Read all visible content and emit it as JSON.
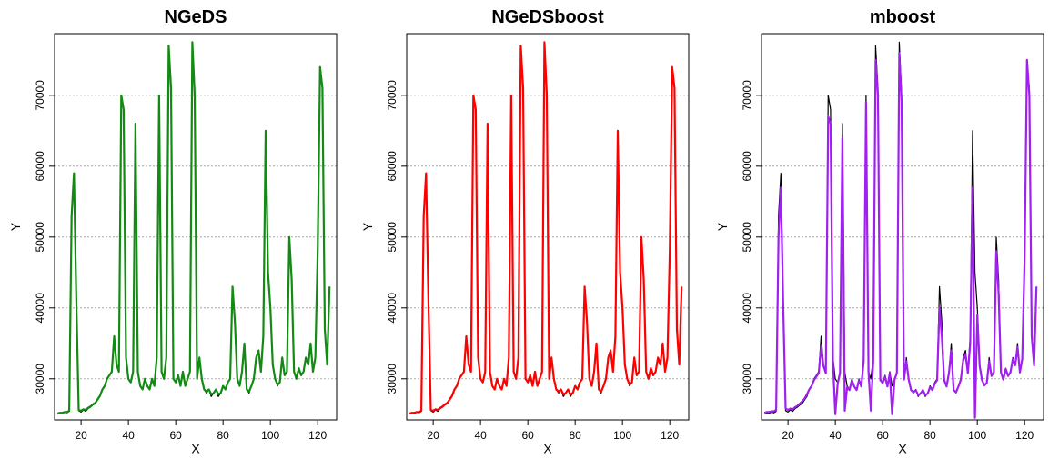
{
  "chart_data": [
    {
      "type": "line",
      "title": "NGeDS",
      "x_label": "X",
      "y_label": "Y",
      "x": [
        10,
        11,
        12,
        13,
        14,
        15,
        16,
        17,
        18,
        19,
        20,
        21,
        22,
        23,
        24,
        25,
        26,
        27,
        28,
        29,
        30,
        31,
        32,
        33,
        34,
        35,
        36,
        37,
        38,
        39,
        40,
        41,
        42,
        43,
        44,
        45,
        46,
        47,
        48,
        49,
        50,
        51,
        52,
        53,
        54,
        55,
        56,
        57,
        58,
        59,
        60,
        61,
        62,
        63,
        64,
        65,
        66,
        67,
        68,
        69,
        70,
        71,
        72,
        73,
        74,
        75,
        76,
        77,
        78,
        79,
        80,
        81,
        82,
        83,
        84,
        85,
        86,
        87,
        88,
        89,
        90,
        91,
        92,
        93,
        94,
        95,
        96,
        97,
        98,
        99,
        100,
        101,
        102,
        103,
        104,
        105,
        106,
        107,
        108,
        109,
        110,
        111,
        112,
        113,
        114,
        115,
        116,
        117,
        118,
        119,
        120,
        121,
        122,
        123,
        124,
        125
      ],
      "series": [
        {
          "color": "#000000",
          "values": [
            25000,
            25200,
            25100,
            25300,
            25200,
            25400,
            53000,
            59000,
            41000,
            25500,
            25300,
            25600,
            25400,
            25800,
            26000,
            26300,
            26500,
            27000,
            27500,
            28500,
            29000,
            30000,
            30500,
            31000,
            36000,
            32000,
            31000,
            70000,
            68000,
            33000,
            30000,
            29500,
            31000,
            66000,
            31000,
            29000,
            28500,
            30000,
            29000,
            28500,
            30000,
            29000,
            33000,
            70000,
            31000,
            30000,
            33000,
            77000,
            71000,
            30000,
            29500,
            30500,
            29000,
            31000,
            29000,
            30000,
            31000,
            77500,
            70000,
            30000,
            33000,
            30000,
            28500,
            28000,
            28500,
            27500,
            28000,
            28500,
            27500,
            28000,
            29000,
            28500,
            29500,
            30000,
            43000,
            38000,
            30000,
            29000,
            31000,
            35000,
            28500,
            28000,
            29000,
            30000,
            33000,
            34000,
            31000,
            36000,
            65000,
            45000,
            40000,
            32000,
            30000,
            29000,
            29500,
            33000,
            30500,
            31000,
            50000,
            44000,
            31000,
            30000,
            31500,
            30500,
            31000,
            33000,
            32000,
            35000,
            31000,
            33000,
            48000,
            74000,
            71000,
            37000,
            32000,
            43000
          ]
        },
        {
          "color": "#138a13",
          "values": [
            25100,
            25200,
            25200,
            25300,
            25300,
            25500,
            53000,
            59000,
            41000,
            25600,
            25500,
            25700,
            25600,
            25900,
            26100,
            26400,
            26600,
            27100,
            27600,
            28500,
            29000,
            30000,
            30500,
            31000,
            36000,
            32000,
            31000,
            70000,
            68000,
            33000,
            30000,
            29500,
            31000,
            66000,
            31000,
            29000,
            28500,
            30000,
            29000,
            28500,
            30000,
            29000,
            33000,
            70000,
            31000,
            30000,
            33000,
            77000,
            71000,
            30000,
            29500,
            30500,
            29000,
            31000,
            29000,
            30000,
            31000,
            77500,
            70000,
            30000,
            33000,
            30000,
            28500,
            28200,
            28500,
            27800,
            28000,
            28500,
            27800,
            28000,
            29000,
            28500,
            29500,
            30000,
            43000,
            38000,
            30000,
            29000,
            31000,
            35000,
            28500,
            28200,
            29000,
            30000,
            33000,
            34000,
            31000,
            36000,
            65000,
            45000,
            40000,
            32000,
            30000,
            29200,
            29500,
            33000,
            30500,
            31000,
            50000,
            44000,
            31000,
            30000,
            31500,
            30500,
            31000,
            33000,
            32000,
            35000,
            31000,
            33000,
            48000,
            74000,
            71000,
            37000,
            32000,
            43000
          ]
        }
      ],
      "xlim": [
        8.8,
        128
      ],
      "ylim": [
        24200,
        78700
      ],
      "xticks": [
        20,
        40,
        60,
        80,
        100,
        120
      ],
      "yticks": [
        30000,
        40000,
        50000,
        60000,
        70000
      ],
      "grid": true
    },
    {
      "type": "line",
      "title": "NGeDSboost",
      "x_label": "X",
      "y_label": "Y",
      "x": [
        10,
        11,
        12,
        13,
        14,
        15,
        16,
        17,
        18,
        19,
        20,
        21,
        22,
        23,
        24,
        25,
        26,
        27,
        28,
        29,
        30,
        31,
        32,
        33,
        34,
        35,
        36,
        37,
        38,
        39,
        40,
        41,
        42,
        43,
        44,
        45,
        46,
        47,
        48,
        49,
        50,
        51,
        52,
        53,
        54,
        55,
        56,
        57,
        58,
        59,
        60,
        61,
        62,
        63,
        64,
        65,
        66,
        67,
        68,
        69,
        70,
        71,
        72,
        73,
        74,
        75,
        76,
        77,
        78,
        79,
        80,
        81,
        82,
        83,
        84,
        85,
        86,
        87,
        88,
        89,
        90,
        91,
        92,
        93,
        94,
        95,
        96,
        97,
        98,
        99,
        100,
        101,
        102,
        103,
        104,
        105,
        106,
        107,
        108,
        109,
        110,
        111,
        112,
        113,
        114,
        115,
        116,
        117,
        118,
        119,
        120,
        121,
        122,
        123,
        124,
        125
      ],
      "series": [
        {
          "color": "#000000",
          "values": [
            25000,
            25200,
            25100,
            25300,
            25200,
            25400,
            53000,
            59000,
            41000,
            25500,
            25300,
            25600,
            25400,
            25800,
            26000,
            26300,
            26500,
            27000,
            27500,
            28500,
            29000,
            30000,
            30500,
            31000,
            36000,
            32000,
            31000,
            70000,
            68000,
            33000,
            30000,
            29500,
            31000,
            66000,
            31000,
            29000,
            28500,
            30000,
            29000,
            28500,
            30000,
            29000,
            33000,
            70000,
            31000,
            30000,
            33000,
            77000,
            71000,
            30000,
            29500,
            30500,
            29000,
            31000,
            29000,
            30000,
            31000,
            77500,
            70000,
            30000,
            33000,
            30000,
            28500,
            28000,
            28500,
            27500,
            28000,
            28500,
            27500,
            28000,
            29000,
            28500,
            29500,
            30000,
            43000,
            38000,
            30000,
            29000,
            31000,
            35000,
            28500,
            28000,
            29000,
            30000,
            33000,
            34000,
            31000,
            36000,
            65000,
            45000,
            40000,
            32000,
            30000,
            29000,
            29500,
            33000,
            30500,
            31000,
            50000,
            44000,
            31000,
            30000,
            31500,
            30500,
            31000,
            33000,
            32000,
            35000,
            31000,
            33000,
            48000,
            74000,
            71000,
            37000,
            32000,
            43000
          ]
        },
        {
          "color": "#ff0000",
          "values": [
            25100,
            25200,
            25200,
            25300,
            25300,
            25500,
            53000,
            59000,
            41000,
            25600,
            25500,
            25700,
            25600,
            25900,
            26100,
            26400,
            26600,
            27100,
            27600,
            28500,
            29000,
            30000,
            30500,
            31000,
            36000,
            32000,
            31000,
            70000,
            68000,
            33000,
            30000,
            29500,
            31000,
            66000,
            31000,
            29000,
            28500,
            30000,
            29000,
            28500,
            30000,
            29000,
            33000,
            70000,
            31000,
            30000,
            33000,
            77000,
            71000,
            30000,
            29500,
            30500,
            29000,
            31000,
            29000,
            30000,
            31000,
            77500,
            70000,
            30000,
            33000,
            30000,
            28500,
            28200,
            28500,
            27800,
            28000,
            28500,
            27800,
            28000,
            29000,
            28500,
            29500,
            30000,
            43000,
            38000,
            30000,
            29000,
            31000,
            35000,
            28500,
            28200,
            29000,
            30000,
            33000,
            34000,
            31000,
            36000,
            65000,
            45000,
            40000,
            32000,
            30000,
            29200,
            29500,
            33000,
            30500,
            31000,
            50000,
            44000,
            31000,
            30000,
            31500,
            30500,
            31000,
            33000,
            32000,
            35000,
            31000,
            33000,
            48000,
            74000,
            71000,
            37000,
            32000,
            43000
          ]
        }
      ],
      "xlim": [
        8.8,
        128
      ],
      "ylim": [
        24200,
        78700
      ],
      "xticks": [
        20,
        40,
        60,
        80,
        100,
        120
      ],
      "yticks": [
        30000,
        40000,
        50000,
        60000,
        70000
      ],
      "grid": true
    },
    {
      "type": "line",
      "title": "mboost",
      "x_label": "X",
      "y_label": "Y",
      "x": [
        10,
        11,
        12,
        13,
        14,
        15,
        16,
        17,
        18,
        19,
        20,
        21,
        22,
        23,
        24,
        25,
        26,
        27,
        28,
        29,
        30,
        31,
        32,
        33,
        34,
        35,
        36,
        37,
        38,
        39,
        40,
        41,
        42,
        43,
        44,
        45,
        46,
        47,
        48,
        49,
        50,
        51,
        52,
        53,
        54,
        55,
        56,
        57,
        58,
        59,
        60,
        61,
        62,
        63,
        64,
        65,
        66,
        67,
        68,
        69,
        70,
        71,
        72,
        73,
        74,
        75,
        76,
        77,
        78,
        79,
        80,
        81,
        82,
        83,
        84,
        85,
        86,
        87,
        88,
        89,
        90,
        91,
        92,
        93,
        94,
        95,
        96,
        97,
        98,
        99,
        100,
        101,
        102,
        103,
        104,
        105,
        106,
        107,
        108,
        109,
        110,
        111,
        112,
        113,
        114,
        115,
        116,
        117,
        118,
        119,
        120,
        121,
        122,
        123,
        124,
        125
      ],
      "series": [
        {
          "color": "#000000",
          "values": [
            25000,
            25200,
            25100,
            25300,
            25200,
            25400,
            53000,
            59000,
            41000,
            25500,
            25300,
            25600,
            25400,
            25800,
            26000,
            26300,
            26500,
            27000,
            27500,
            28500,
            29000,
            30000,
            30500,
            31000,
            36000,
            32000,
            31000,
            70000,
            68000,
            33000,
            30000,
            29500,
            31000,
            66000,
            31000,
            29000,
            28500,
            30000,
            29000,
            28500,
            30000,
            29000,
            33000,
            70000,
            31000,
            30000,
            33000,
            77000,
            71000,
            30000,
            29500,
            30500,
            29000,
            31000,
            29000,
            30000,
            31000,
            77500,
            70000,
            30000,
            33000,
            30000,
            28500,
            28000,
            28500,
            27500,
            28000,
            28500,
            27500,
            28000,
            29000,
            28500,
            29500,
            30000,
            43000,
            38000,
            30000,
            29000,
            31000,
            35000,
            28500,
            28000,
            29000,
            30000,
            33000,
            34000,
            31000,
            36000,
            65000,
            45000,
            40000,
            32000,
            30000,
            29000,
            29500,
            33000,
            30500,
            31000,
            50000,
            44000,
            31000,
            30000,
            31500,
            30500,
            31000,
            33000,
            32000,
            35000,
            31000,
            33000,
            48000,
            74000,
            71000,
            37000,
            32000,
            43000
          ]
        },
        {
          "color": "#a020f0",
          "values": [
            25200,
            25300,
            25300,
            25400,
            25400,
            25600,
            50000,
            57000,
            40000,
            25800,
            25600,
            25800,
            25700,
            26000,
            26200,
            26500,
            26800,
            27200,
            27800,
            28500,
            29000,
            29800,
            30300,
            30800,
            34500,
            31800,
            30800,
            67000,
            66000,
            32500,
            25000,
            29300,
            30800,
            64000,
            25500,
            28800,
            28400,
            29800,
            28900,
            28400,
            29800,
            28900,
            32500,
            69000,
            31000,
            25500,
            32500,
            75000,
            70000,
            29800,
            29400,
            30300,
            28900,
            30800,
            25000,
            29900,
            30800,
            76000,
            69000,
            29900,
            32500,
            29900,
            28400,
            28100,
            28400,
            27700,
            27900,
            28400,
            27700,
            27900,
            28800,
            28400,
            29300,
            29800,
            40000,
            36000,
            29800,
            28900,
            30800,
            34000,
            28400,
            28100,
            28900,
            29800,
            32500,
            33500,
            30800,
            35000,
            57000,
            24500,
            39000,
            31800,
            29800,
            29100,
            29400,
            32500,
            30400,
            30900,
            48000,
            42000,
            30900,
            29900,
            31400,
            30400,
            30900,
            32800,
            31900,
            34500,
            30900,
            32800,
            47000,
            75000,
            70000,
            36000,
            31900,
            43000
          ]
        }
      ],
      "xlim": [
        8.8,
        128
      ],
      "ylim": [
        24200,
        78700
      ],
      "xticks": [
        20,
        40,
        60,
        80,
        100,
        120
      ],
      "yticks": [
        30000,
        40000,
        50000,
        60000,
        70000
      ],
      "grid": true
    }
  ]
}
